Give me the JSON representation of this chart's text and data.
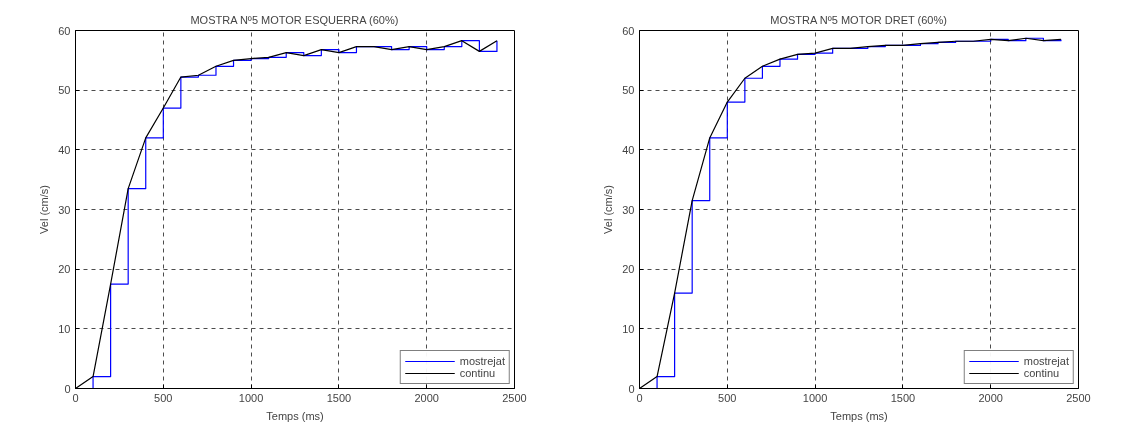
{
  "chart_data": [
    {
      "type": "line",
      "title": "MOSTRA Nº5 MOTOR ESQUERRA (60%)",
      "xlabel": "Temps (ms)",
      "ylabel": "Vel (cm/s)",
      "x": [
        0,
        100,
        200,
        300,
        400,
        500,
        600,
        700,
        800,
        900,
        1000,
        1100,
        1200,
        1300,
        1400,
        1500,
        1600,
        1700,
        1800,
        1900,
        2000,
        2100,
        2200,
        2300,
        2400
      ],
      "series": [
        {
          "name": "mostrejat",
          "type": "step",
          "color": "#0000ff",
          "values": [
            0,
            2,
            17.5,
            33.5,
            42,
            47,
            52.2,
            52.5,
            54,
            55,
            55.3,
            55.5,
            56.3,
            55.8,
            56.8,
            56.3,
            57.3,
            57.3,
            56.8,
            57.3,
            56.8,
            57.3,
            58.3,
            56.5,
            58.3
          ]
        },
        {
          "name": "continu",
          "color": "#000000",
          "values": [
            0,
            2,
            17.5,
            33.5,
            42,
            47,
            52.2,
            52.5,
            54,
            55,
            55.3,
            55.5,
            56.3,
            55.8,
            56.8,
            56.3,
            57.3,
            57.3,
            56.8,
            57.3,
            56.8,
            57.3,
            58.3,
            56.5,
            58.3
          ]
        }
      ],
      "xlim": [
        0,
        2500
      ],
      "xticks": [
        0,
        500,
        1000,
        1500,
        2000,
        2500
      ],
      "ylim": [
        0,
        60
      ],
      "yticks": [
        0,
        10,
        20,
        30,
        40,
        50,
        60
      ],
      "grid": true,
      "legend": "bottom right"
    },
    {
      "type": "line",
      "title": "MOSTRA Nº5 MOTOR DRET (60%)",
      "xlabel": "Temps (ms)",
      "ylabel": "Vel (cm/s)",
      "x": [
        0,
        100,
        200,
        300,
        400,
        500,
        600,
        700,
        800,
        900,
        1000,
        1100,
        1200,
        1300,
        1400,
        1500,
        1600,
        1700,
        1800,
        1900,
        2000,
        2100,
        2200,
        2300,
        2400
      ],
      "series": [
        {
          "name": "mostrejat",
          "type": "step",
          "color": "#0000ff",
          "values": [
            0,
            2,
            16,
            31.5,
            42,
            48,
            52,
            54,
            55.2,
            56,
            56.2,
            57,
            57,
            57.3,
            57.5,
            57.5,
            57.8,
            58,
            58.2,
            58.2,
            58.5,
            58.3,
            58.7,
            58.3,
            58.5
          ]
        },
        {
          "name": "continu",
          "color": "#000000",
          "values": [
            0,
            2,
            16,
            31.5,
            42,
            48,
            52,
            54,
            55.2,
            56,
            56.2,
            57,
            57,
            57.3,
            57.5,
            57.5,
            57.8,
            58,
            58.2,
            58.2,
            58.5,
            58.3,
            58.7,
            58.3,
            58.5
          ]
        }
      ],
      "xlim": [
        0,
        2500
      ],
      "xticks": [
        0,
        500,
        1000,
        1500,
        2000,
        2500
      ],
      "ylim": [
        0,
        60
      ],
      "yticks": [
        0,
        10,
        20,
        30,
        40,
        50,
        60
      ],
      "grid": true,
      "legend": "bottom right"
    }
  ]
}
